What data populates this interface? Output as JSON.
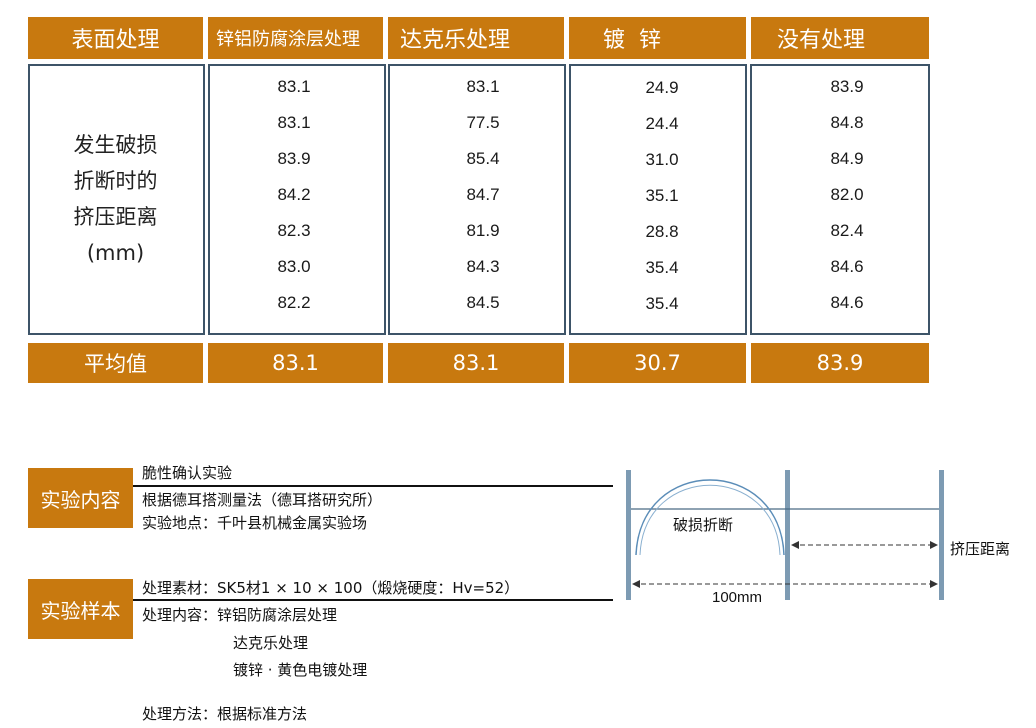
{
  "table": {
    "headers": [
      "表面处理",
      "锌铝防腐涂层处理",
      "达克乐处理",
      "镀  锌",
      "没有处理"
    ],
    "row_label": [
      "发生破损",
      "折断时的",
      "挤压距离",
      "(mm)"
    ],
    "columns": [
      [
        "83.1",
        "83.1",
        "83.9",
        "84.2",
        "82.3",
        "83.0",
        "82.2"
      ],
      [
        "83.1",
        "77.5",
        "85.4",
        "84.7",
        "81.9",
        "84.3",
        "84.5"
      ],
      [
        "24.9",
        "24.4",
        "31.0",
        "35.1",
        "28.8",
        "35.4",
        "35.4"
      ],
      [
        "83.9",
        "84.8",
        "84.9",
        "82.0",
        "82.4",
        "84.6",
        "84.6"
      ]
    ],
    "avg_label": "平均值",
    "averages": [
      "83.1",
      "83.1",
      "30.7",
      "83.9"
    ]
  },
  "experiment": {
    "tag": "实验内容",
    "line1": "脆性确认实验",
    "line2": "根据德耳搭测量法（德耳搭研究所）",
    "line3": "实验地点：千叶县机械金属实验场"
  },
  "sample": {
    "tag": "实验样本",
    "line1": "处理素材：SK5材1 × 10 × 100（煅烧硬度：Hv=52）",
    "line2": "处理内容：锌铝防腐涂层处理",
    "line3": "达克乐处理",
    "line4": "镀锌 · 黄色电镀处理",
    "line5": "处理方法：根据标准方法"
  },
  "diagram": {
    "break_label": "破损折断",
    "squeeze_label": "挤压距离",
    "length_label": "100mm"
  },
  "colors": {
    "accent": "#c8790f",
    "border": "#3d5468",
    "bar": "#7d9bb3"
  }
}
